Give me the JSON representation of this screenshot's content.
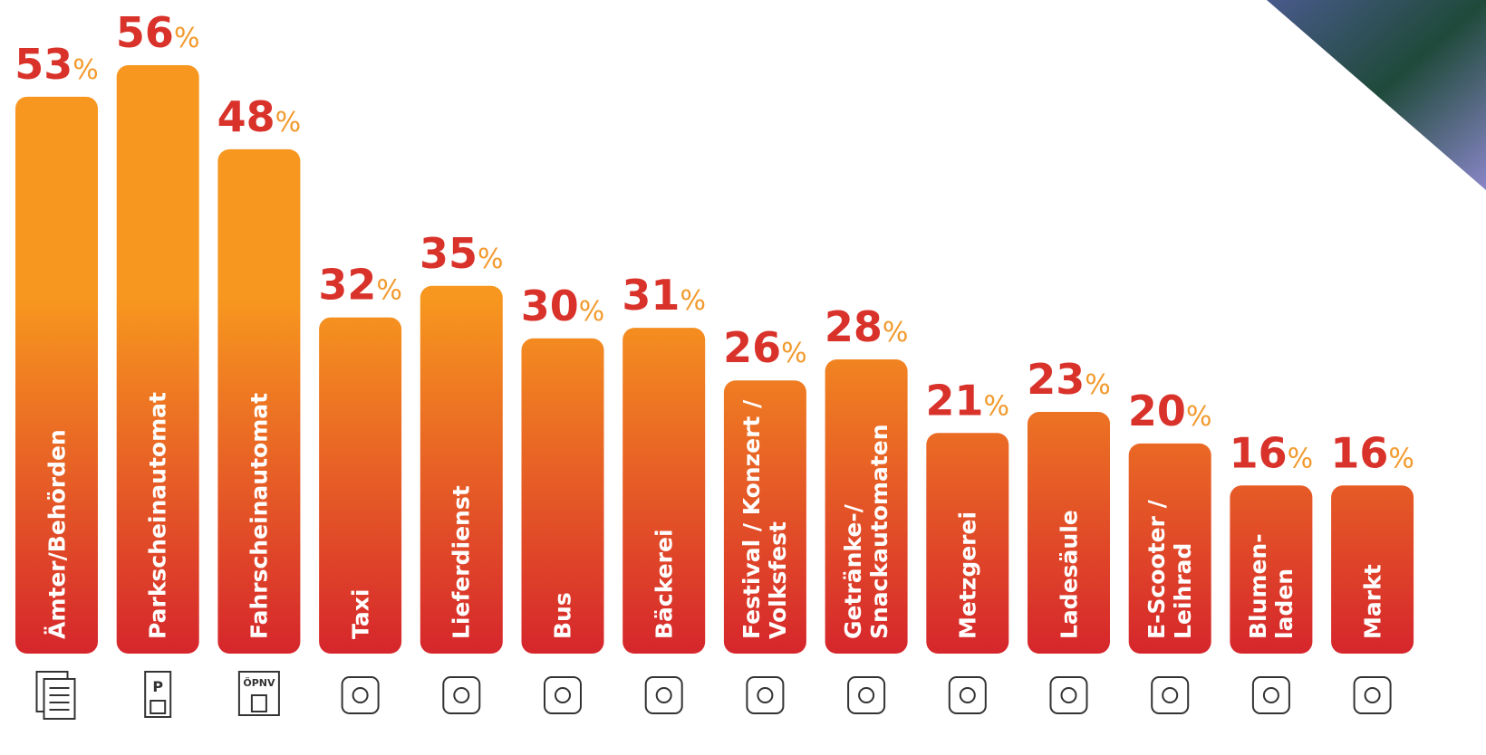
{
  "chart_data": {
    "type": "bar",
    "categories": [
      "Ämter/Behörden",
      "Parkscheinautomat",
      "Fahrscheinautomat",
      "Taxi",
      "Lieferdienst",
      "Bus",
      "Bäckerei",
      "Festival / Konzert /\nVolksfest",
      "Getränke-/\nSnackautomaten",
      "Metzgerei",
      "Ladesäule",
      "E-Scooter /\nLeihrad",
      "Blumen-\nladen",
      "Markt"
    ],
    "values": [
      53,
      56,
      48,
      32,
      35,
      30,
      31,
      26,
      28,
      21,
      23,
      20,
      16,
      16
    ],
    "unit": "%",
    "colors": {
      "top": "#f7971f",
      "bottom": "#d6262c",
      "label": "#d8322a",
      "unit": "#f29a2e"
    }
  },
  "icons": {
    "parking": "P",
    "transit": "ÖPNV"
  }
}
